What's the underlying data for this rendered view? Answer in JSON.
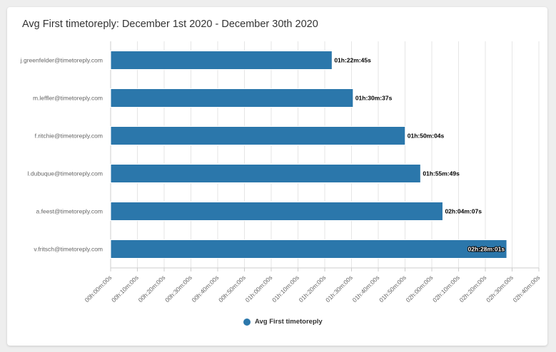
{
  "chart_data": {
    "type": "bar",
    "orientation": "horizontal",
    "title": "Avg First timetoreply: December 1st 2020 - December 30th 2020",
    "categories": [
      "j.greenfelder@timetoreply.com",
      "m.leffler@timetoreply.com",
      "f.ritchie@timetoreply.com",
      "l.dubuque@timetoreply.com",
      "a.feest@timetoreply.com",
      "v.fritsch@timetoreply.com"
    ],
    "series": [
      {
        "name": "Avg First timetoreply",
        "color": "#2b77ab",
        "values_seconds": [
          4965,
          5437,
          6604,
          6949,
          7447,
          8881
        ],
        "labels": [
          "01h:22m:45s",
          "01h:30m:37s",
          "01h:50m:04s",
          "01h:55m:49s",
          "02h:04m:07s",
          "02h:28m:01s"
        ]
      }
    ],
    "xlim_seconds": [
      0,
      9600
    ],
    "xtick_step_seconds": 600,
    "xtick_labels": [
      "00h:00m:00s",
      "00h:10m:00s",
      "00h:20m:00s",
      "00h:30m:00s",
      "00h:40m:00s",
      "00h:50m:00s",
      "01h:00m:00s",
      "01h:10m:00s",
      "01h:20m:00s",
      "01h:30m:00s",
      "01h:40m:00s",
      "01h:50m:00s",
      "02h:00m:00s",
      "02h:10m:00s",
      "02h:20m:00s",
      "02h:30m:00s",
      "02h:40m:00s"
    ],
    "grid": true,
    "legend_position": "bottom-center"
  }
}
